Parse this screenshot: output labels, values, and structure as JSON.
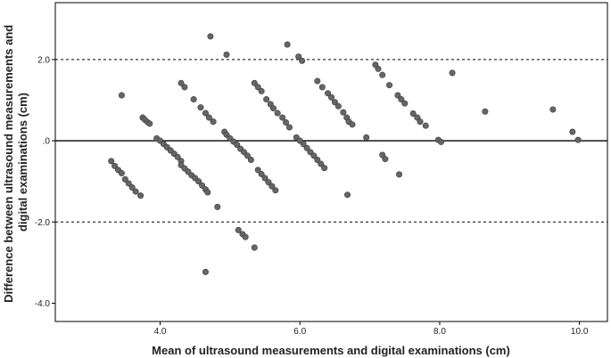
{
  "chart_data": {
    "type": "scatter",
    "title": "",
    "xlabel": "Mean of ultrasound measurements and digital examinations (cm)",
    "ylabel_lines": [
      "Difference between ultrasound measurements and",
      "digital examinations (cm)"
    ],
    "xlim": [
      2.5,
      10.4
    ],
    "ylim": [
      -4.45,
      3.4
    ],
    "xticks": [
      4.0,
      6.0,
      8.0,
      10.0
    ],
    "xtick_labels": [
      "4.0",
      "6.0",
      "8.0",
      "10.0"
    ],
    "yticks": [
      2.0,
      0.0,
      -2.0,
      -4.0
    ],
    "ytick_labels": [
      "2.0",
      ".0",
      "-2.0",
      "-4.0"
    ],
    "reference_lines": [
      {
        "value": 2.0,
        "style": "dashed"
      },
      {
        "value": 0.0,
        "style": "solid"
      },
      {
        "value": -2.0,
        "style": "dashed"
      }
    ],
    "point_color": "#666666",
    "points": [
      [
        3.3,
        -0.5
      ],
      [
        3.35,
        -0.62
      ],
      [
        3.4,
        -0.72
      ],
      [
        3.45,
        -0.8
      ],
      [
        3.5,
        -0.95
      ],
      [
        3.55,
        -1.05
      ],
      [
        3.6,
        -1.15
      ],
      [
        3.65,
        -1.25
      ],
      [
        3.72,
        -1.35
      ],
      [
        3.45,
        1.12
      ],
      [
        3.75,
        0.57
      ],
      [
        3.78,
        0.52
      ],
      [
        3.82,
        0.46
      ],
      [
        3.85,
        0.42
      ],
      [
        3.95,
        0.06
      ],
      [
        4.0,
        0.0
      ],
      [
        4.05,
        -0.08
      ],
      [
        4.1,
        -0.16
      ],
      [
        4.15,
        -0.24
      ],
      [
        4.2,
        -0.32
      ],
      [
        4.25,
        -0.4
      ],
      [
        4.3,
        -0.5
      ],
      [
        4.3,
        -0.6
      ],
      [
        4.35,
        -0.68
      ],
      [
        4.4,
        -0.76
      ],
      [
        4.45,
        -0.85
      ],
      [
        4.5,
        -0.92
      ],
      [
        4.55,
        -1.0
      ],
      [
        4.6,
        -1.1
      ],
      [
        4.65,
        -1.2
      ],
      [
        4.68,
        -1.27
      ],
      [
        4.3,
        1.42
      ],
      [
        4.35,
        1.32
      ],
      [
        4.48,
        1.02
      ],
      [
        4.58,
        0.82
      ],
      [
        4.65,
        0.68
      ],
      [
        4.7,
        0.57
      ],
      [
        4.76,
        0.47
      ],
      [
        4.72,
        2.57
      ],
      [
        4.95,
        2.12
      ],
      [
        4.82,
        -1.63
      ],
      [
        4.65,
        -3.23
      ],
      [
        4.92,
        0.22
      ],
      [
        4.95,
        0.15
      ],
      [
        5.0,
        0.06
      ],
      [
        5.05,
        -0.02
      ],
      [
        5.1,
        -0.1
      ],
      [
        5.15,
        -0.2
      ],
      [
        5.2,
        -0.28
      ],
      [
        5.25,
        -0.37
      ],
      [
        5.3,
        -0.47
      ],
      [
        5.12,
        -2.2
      ],
      [
        5.18,
        -2.3
      ],
      [
        5.22,
        -2.37
      ],
      [
        5.35,
        -2.63
      ],
      [
        5.35,
        1.42
      ],
      [
        5.4,
        1.32
      ],
      [
        5.45,
        1.22
      ],
      [
        5.52,
        1.02
      ],
      [
        5.58,
        0.9
      ],
      [
        5.62,
        0.8
      ],
      [
        5.68,
        0.68
      ],
      [
        5.75,
        0.57
      ],
      [
        5.8,
        0.45
      ],
      [
        5.85,
        0.33
      ],
      [
        5.4,
        -0.72
      ],
      [
        5.45,
        -0.82
      ],
      [
        5.5,
        -0.92
      ],
      [
        5.55,
        -1.02
      ],
      [
        5.6,
        -1.12
      ],
      [
        5.65,
        -1.22
      ],
      [
        5.82,
        2.37
      ],
      [
        5.98,
        2.07
      ],
      [
        6.03,
        1.97
      ],
      [
        5.95,
        0.08
      ],
      [
        6.0,
        0.0
      ],
      [
        6.05,
        -0.08
      ],
      [
        6.1,
        -0.18
      ],
      [
        6.15,
        -0.28
      ],
      [
        6.2,
        -0.37
      ],
      [
        6.25,
        -0.47
      ],
      [
        6.3,
        -0.57
      ],
      [
        6.35,
        -0.67
      ],
      [
        6.25,
        1.47
      ],
      [
        6.32,
        1.32
      ],
      [
        6.4,
        1.17
      ],
      [
        6.45,
        1.07
      ],
      [
        6.5,
        0.95
      ],
      [
        6.55,
        0.85
      ],
      [
        6.62,
        0.7
      ],
      [
        6.67,
        0.57
      ],
      [
        6.7,
        0.47
      ],
      [
        6.75,
        0.4
      ],
      [
        6.68,
        -1.33
      ],
      [
        6.95,
        0.08
      ],
      [
        7.08,
        1.87
      ],
      [
        7.12,
        1.77
      ],
      [
        7.18,
        1.62
      ],
      [
        7.28,
        1.37
      ],
      [
        7.4,
        1.12
      ],
      [
        7.45,
        1.02
      ],
      [
        7.5,
        0.92
      ],
      [
        7.62,
        0.67
      ],
      [
        7.68,
        0.57
      ],
      [
        7.72,
        0.47
      ],
      [
        7.8,
        0.37
      ],
      [
        7.18,
        -0.35
      ],
      [
        7.22,
        -0.45
      ],
      [
        7.42,
        -0.83
      ],
      [
        7.98,
        0.02
      ],
      [
        8.02,
        -0.03
      ],
      [
        8.18,
        1.67
      ],
      [
        8.65,
        0.72
      ],
      [
        9.62,
        0.77
      ],
      [
        9.9,
        0.22
      ],
      [
        9.98,
        0.02
      ]
    ]
  }
}
